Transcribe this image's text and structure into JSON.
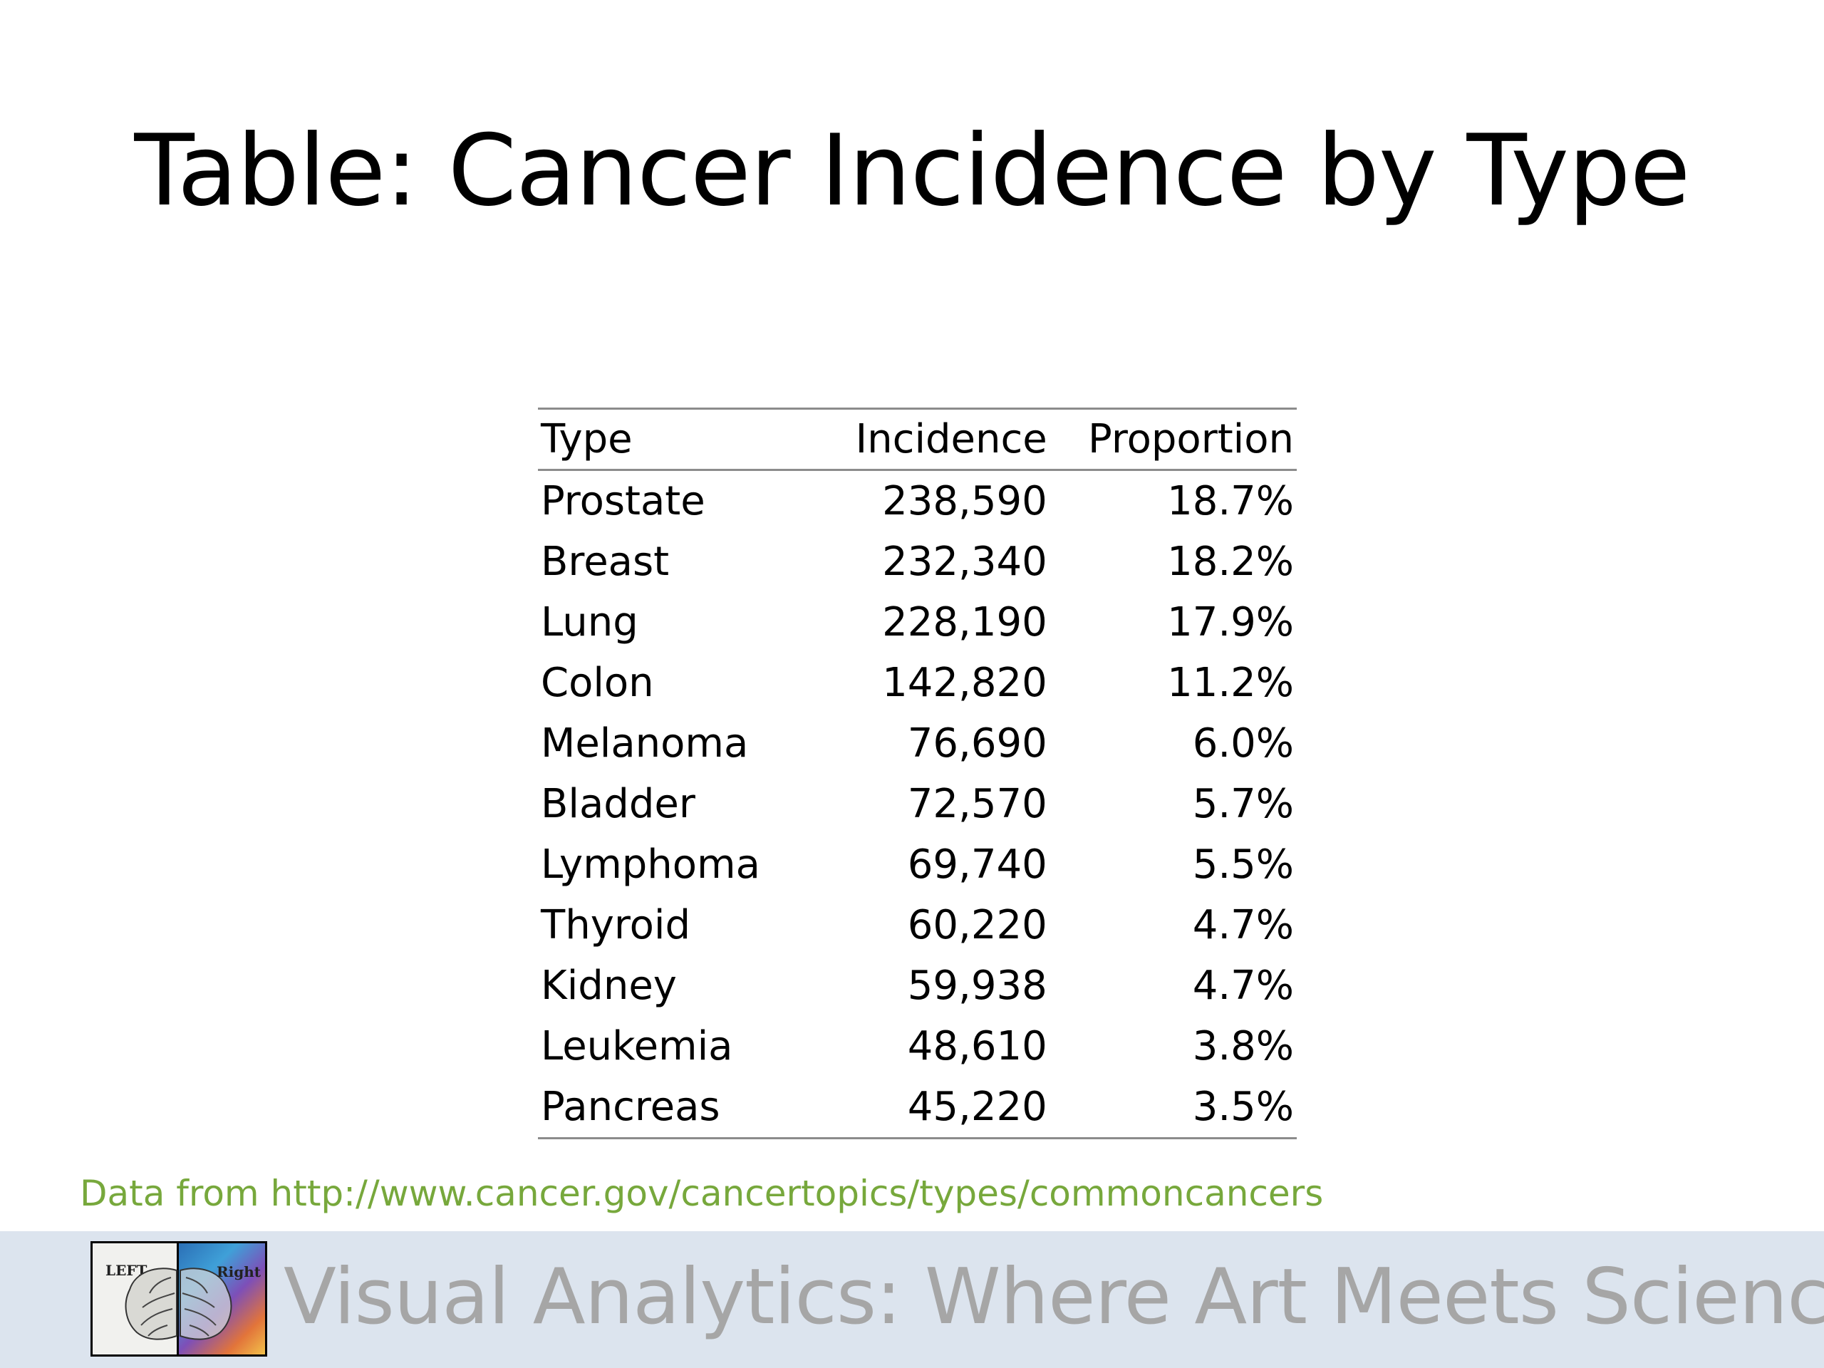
{
  "slide": {
    "title": "Table: Cancer Incidence by Type"
  },
  "table": {
    "headers": {
      "type": "Type",
      "incidence": "Incidence",
      "proportion": "Proportion"
    },
    "rows": [
      {
        "type": "Prostate",
        "incidence": "238,590",
        "proportion": "18.7%"
      },
      {
        "type": "Breast",
        "incidence": "232,340",
        "proportion": "18.2%"
      },
      {
        "type": "Lung",
        "incidence": "228,190",
        "proportion": "17.9%"
      },
      {
        "type": "Colon",
        "incidence": "142,820",
        "proportion": "11.2%"
      },
      {
        "type": "Melanoma",
        "incidence": "76,690",
        "proportion": "6.0%"
      },
      {
        "type": "Bladder",
        "incidence": "72,570",
        "proportion": "5.7%"
      },
      {
        "type": "Lymphoma",
        "incidence": "69,740",
        "proportion": "5.5%"
      },
      {
        "type": "Thyroid",
        "incidence": "60,220",
        "proportion": "4.7%"
      },
      {
        "type": "Kidney",
        "incidence": "59,938",
        "proportion": "4.7%"
      },
      {
        "type": "Leukemia",
        "incidence": "48,610",
        "proportion": "3.8%"
      },
      {
        "type": "Pancreas",
        "incidence": "45,220",
        "proportion": "3.5%"
      }
    ]
  },
  "source": {
    "text": "Data from http://www.cancer.gov/cancertopics/types/commoncancers"
  },
  "footer": {
    "title": "Visual Analytics: Where Art Meets Science",
    "logo_left_text": "LEFT",
    "logo_right_text": "Right",
    "logo_icon": "brain-icon",
    "band_color": "#dce4ee",
    "source_color": "#77a83c",
    "footer_text_color": "#a6a6a6"
  }
}
